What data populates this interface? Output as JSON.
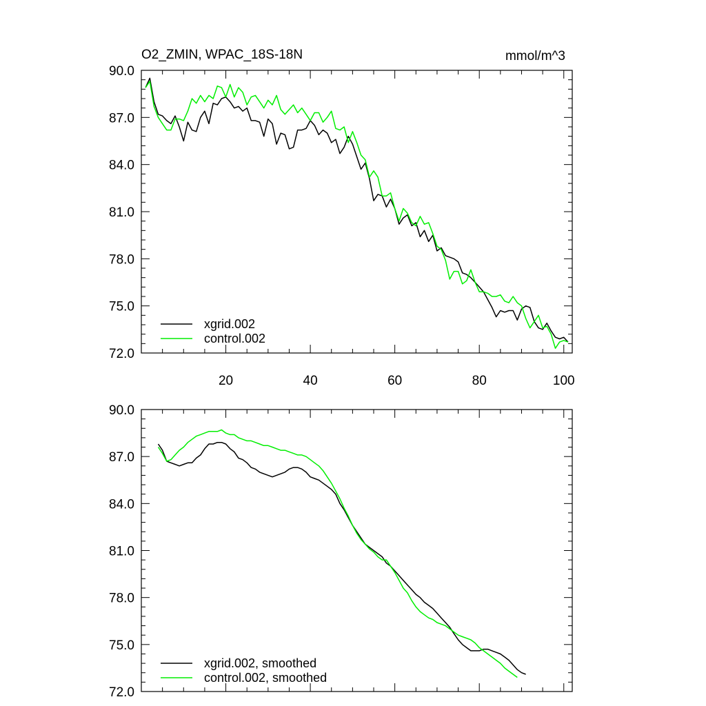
{
  "colors": {
    "xgrid": "#000000",
    "control": "#00ee00",
    "axis": "#000000"
  },
  "chart_data": [
    {
      "id": "raw",
      "type": "line",
      "title": "O2_ZMIN, WPAC_18S-18N",
      "units": "mmol/m^3",
      "xlim": [
        0,
        102
      ],
      "ylim": [
        72.0,
        90.0
      ],
      "yticks": [
        72.0,
        75.0,
        78.0,
        81.0,
        84.0,
        87.0,
        90.0
      ],
      "ytick_labels": [
        "72.0",
        "75.0",
        "78.0",
        "81.0",
        "84.0",
        "87.0",
        "90.0"
      ],
      "xticks": [
        20,
        40,
        60,
        80,
        100
      ],
      "xtick_labels": [
        "20",
        "40",
        "60",
        "80",
        "100"
      ],
      "legend": "bottom-left",
      "series": [
        {
          "name": "xgrid.002",
          "x_start": 1,
          "values": [
            88.9,
            89.5,
            88.0,
            87.2,
            87.1,
            86.8,
            86.6,
            87.1,
            86.4,
            85.5,
            86.7,
            86.2,
            86.1,
            87.0,
            87.4,
            86.6,
            87.9,
            87.8,
            88.2,
            88.3,
            88.0,
            87.6,
            87.7,
            87.4,
            87.6,
            86.8,
            86.8,
            86.7,
            85.8,
            86.9,
            86.6,
            85.3,
            86.0,
            85.9,
            85.0,
            85.1,
            86.2,
            86.2,
            86.3,
            86.8,
            86.5,
            85.9,
            86.2,
            86.0,
            85.4,
            85.6,
            84.7,
            85.1,
            85.8,
            85.3,
            84.5,
            83.7,
            84.1,
            83.1,
            81.7,
            82.1,
            82.0,
            81.3,
            81.8,
            81.2,
            80.2,
            80.6,
            80.8,
            80.1,
            80.3,
            79.4,
            79.8,
            79.1,
            79.5,
            78.5,
            78.7,
            78.2,
            78.1,
            78.0,
            77.8,
            77.1,
            77.0,
            76.8,
            76.5,
            76.2,
            75.9,
            75.4,
            74.9,
            74.3,
            74.7,
            74.6,
            74.7,
            74.7,
            74.1,
            74.8,
            75.0,
            74.9,
            74.0,
            73.6,
            73.5,
            73.9,
            73.4,
            73.0,
            72.9,
            73.0,
            72.7
          ]
        },
        {
          "name": "control.002",
          "x_start": 1,
          "values": [
            88.9,
            89.3,
            87.7,
            87.0,
            86.6,
            86.2,
            86.2,
            86.9,
            86.9,
            86.8,
            87.4,
            88.2,
            87.9,
            88.4,
            88.0,
            88.4,
            88.2,
            89.0,
            88.9,
            88.3,
            89.1,
            88.3,
            88.9,
            88.6,
            87.8,
            88.3,
            88.4,
            88.0,
            87.6,
            88.1,
            87.8,
            88.4,
            87.5,
            87.2,
            87.5,
            87.8,
            87.3,
            87.6,
            87.2,
            86.8,
            87.3,
            87.3,
            86.7,
            87.0,
            87.4,
            86.3,
            86.2,
            86.4,
            85.4,
            86.1,
            85.4,
            84.6,
            84.3,
            83.2,
            83.6,
            83.2,
            82.0,
            82.0,
            82.2,
            81.2,
            80.4,
            81.2,
            80.9,
            80.3,
            80.1,
            80.7,
            80.2,
            80.3,
            79.6,
            78.8,
            78.6,
            77.9,
            76.7,
            77.2,
            77.2,
            76.4,
            76.6,
            77.3,
            76.5,
            75.9,
            75.9,
            75.8,
            75.6,
            75.6,
            75.7,
            75.3,
            75.2,
            75.6,
            75.2,
            75.0,
            74.2,
            73.6,
            74.0,
            74.4,
            73.6,
            73.7,
            73.2,
            72.3,
            72.7,
            72.8,
            72.7
          ]
        }
      ]
    },
    {
      "id": "smoothed",
      "type": "line",
      "xlim": [
        0,
        102
      ],
      "ylim": [
        72.0,
        90.0
      ],
      "yticks": [
        72.0,
        75.0,
        78.0,
        81.0,
        84.0,
        87.0,
        90.0
      ],
      "ytick_labels": [
        "72.0",
        "75.0",
        "78.0",
        "81.0",
        "84.0",
        "87.0",
        "90.0"
      ],
      "xticks": [
        20,
        40,
        60,
        80,
        100
      ],
      "legend": "bottom-left",
      "series": [
        {
          "name": "xgrid.002, smoothed",
          "x_start": 4,
          "values": [
            87.8,
            87.4,
            86.7,
            86.6,
            86.5,
            86.4,
            86.5,
            86.6,
            86.6,
            86.9,
            87.1,
            87.5,
            87.8,
            87.8,
            87.9,
            87.9,
            87.8,
            87.5,
            87.3,
            86.9,
            86.8,
            86.6,
            86.3,
            86.2,
            86.0,
            85.9,
            85.8,
            85.7,
            85.8,
            85.9,
            86.0,
            86.2,
            86.3,
            86.3,
            86.2,
            86.0,
            85.7,
            85.6,
            85.5,
            85.3,
            85.1,
            84.9,
            84.6,
            84.0,
            83.6,
            83.1,
            82.6,
            82.2,
            81.8,
            81.4,
            81.2,
            81.0,
            80.8,
            80.6,
            80.2,
            80.0,
            79.7,
            79.4,
            79.1,
            78.8,
            78.5,
            78.2,
            78.0,
            77.7,
            77.5,
            77.3,
            77.0,
            76.7,
            76.4,
            76.1,
            75.7,
            75.3,
            75.0,
            74.8,
            74.6,
            74.6,
            74.6,
            74.7,
            74.7,
            74.6,
            74.5,
            74.4,
            74.2,
            74.0,
            73.7,
            73.4,
            73.2,
            73.1
          ]
        },
        {
          "name": "control.002, smoothed",
          "x_start": 4,
          "values": [
            87.6,
            87.2,
            86.7,
            86.8,
            87.1,
            87.4,
            87.6,
            87.9,
            88.1,
            88.3,
            88.4,
            88.5,
            88.6,
            88.6,
            88.6,
            88.7,
            88.5,
            88.4,
            88.4,
            88.2,
            88.1,
            88.0,
            88.0,
            87.9,
            87.8,
            87.7,
            87.7,
            87.6,
            87.5,
            87.4,
            87.4,
            87.3,
            87.2,
            87.1,
            87.1,
            87.0,
            86.8,
            86.6,
            86.4,
            86.1,
            85.7,
            85.3,
            84.8,
            84.3,
            83.7,
            83.2,
            82.6,
            82.1,
            81.7,
            81.4,
            81.1,
            80.9,
            80.6,
            80.4,
            80.4,
            80.0,
            79.6,
            79.1,
            78.6,
            78.3,
            77.8,
            77.4,
            77.1,
            76.9,
            76.7,
            76.6,
            76.4,
            76.3,
            76.2,
            76.0,
            75.8,
            75.6,
            75.5,
            75.4,
            75.3,
            75.1,
            74.8,
            74.6,
            74.4,
            74.2,
            74.0,
            73.8,
            73.5,
            73.3,
            73.1,
            72.9
          ]
        }
      ]
    }
  ]
}
